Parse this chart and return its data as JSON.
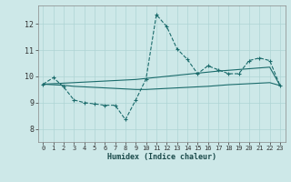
{
  "xlabel": "Humidex (Indice chaleur)",
  "xlim": [
    -0.5,
    23.5
  ],
  "ylim": [
    7.5,
    12.7
  ],
  "yticks": [
    8,
    9,
    10,
    11,
    12
  ],
  "xticks": [
    0,
    1,
    2,
    3,
    4,
    5,
    6,
    7,
    8,
    9,
    10,
    11,
    12,
    13,
    14,
    15,
    16,
    17,
    18,
    19,
    20,
    21,
    22,
    23
  ],
  "bg_color": "#cde8e8",
  "line_color": "#1a6b6b",
  "grid_color": "#aed4d4",
  "line1_x": [
    0,
    1,
    2,
    3,
    4,
    5,
    6,
    7,
    8,
    9,
    10,
    11,
    12,
    13,
    14,
    15,
    16,
    17,
    18,
    19,
    20,
    21,
    22,
    23
  ],
  "line1_y": [
    9.7,
    9.95,
    9.6,
    9.1,
    9.0,
    8.95,
    8.9,
    8.9,
    8.35,
    9.1,
    9.9,
    12.35,
    11.9,
    11.05,
    10.65,
    10.1,
    10.4,
    10.25,
    10.1,
    10.1,
    10.6,
    10.7,
    10.6,
    9.65
  ],
  "line2_x": [
    0,
    1,
    2,
    3,
    4,
    5,
    6,
    7,
    8,
    9,
    10,
    11,
    12,
    13,
    14,
    15,
    16,
    17,
    18,
    19,
    20,
    21,
    22,
    23
  ],
  "line2_y": [
    9.7,
    9.72,
    9.74,
    9.76,
    9.78,
    9.8,
    9.82,
    9.84,
    9.86,
    9.88,
    9.92,
    9.96,
    10.0,
    10.04,
    10.08,
    10.12,
    10.16,
    10.2,
    10.23,
    10.26,
    10.29,
    10.32,
    10.35,
    9.65
  ],
  "line3_x": [
    0,
    1,
    2,
    3,
    4,
    5,
    6,
    7,
    8,
    9,
    10,
    11,
    12,
    13,
    14,
    15,
    16,
    17,
    18,
    19,
    20,
    21,
    22,
    23
  ],
  "line3_y": [
    9.7,
    9.68,
    9.66,
    9.62,
    9.6,
    9.58,
    9.56,
    9.54,
    9.52,
    9.5,
    9.5,
    9.52,
    9.54,
    9.56,
    9.58,
    9.6,
    9.62,
    9.65,
    9.68,
    9.7,
    9.72,
    9.74,
    9.76,
    9.65
  ]
}
